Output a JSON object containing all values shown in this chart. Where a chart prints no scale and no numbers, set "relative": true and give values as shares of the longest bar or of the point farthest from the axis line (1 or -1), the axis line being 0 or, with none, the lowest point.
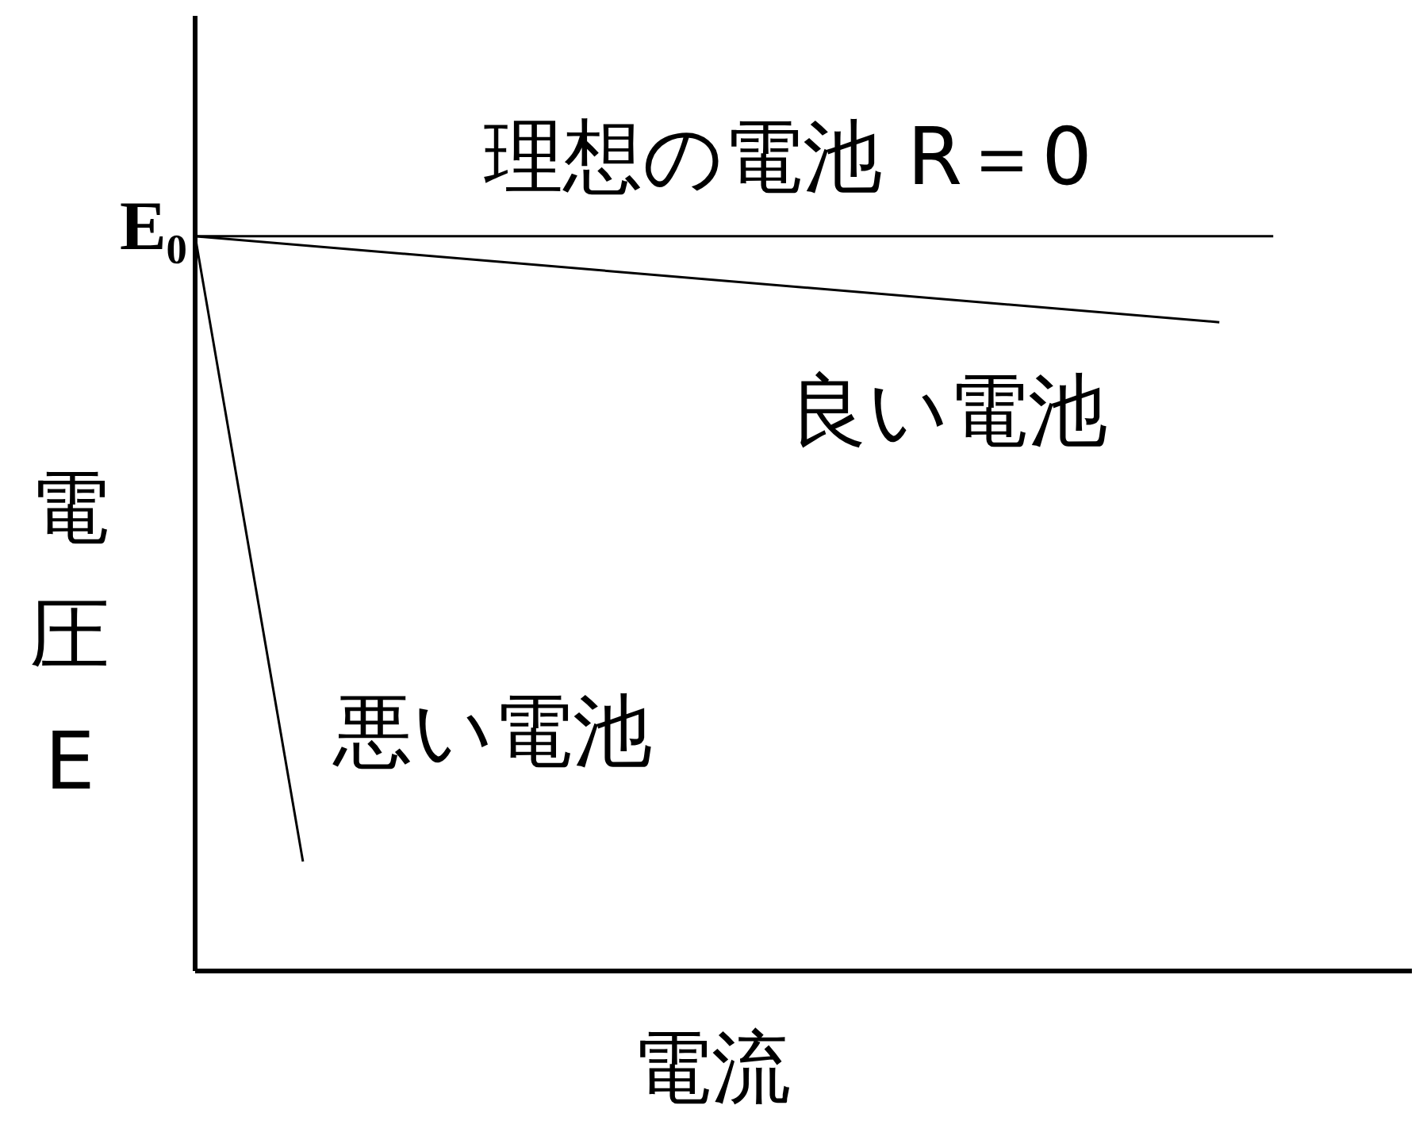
{
  "chart_data": {
    "type": "line",
    "relative": true,
    "xlabel": "電流",
    "ylabel": "電圧 E",
    "marker": "none",
    "line_style": "solid",
    "annotations": [
      "E₀"
    ],
    "categories": [
      null,
      null,
      null,
      null,
      null,
      null,
      null,
      null,
      null,
      null,
      null,
      null,
      null,
      null,
      null,
      null,
      null,
      null,
      null,
      null,
      null,
      null,
      null
    ],
    "series": [
      {
        "name": "理想の電池 R＝0",
        "color": "#000000",
        "values": [
          1,
          null,
          null,
          null,
          null,
          null,
          null,
          null,
          null,
          null,
          null,
          null,
          null,
          null,
          null,
          null,
          null,
          null,
          null,
          null,
          1,
          null,
          null
        ]
      },
      {
        "name": "良い電池",
        "color": "#000000",
        "values": [
          1,
          null,
          null,
          null,
          null,
          null,
          null,
          null,
          null,
          null,
          null,
          null,
          null,
          null,
          null,
          null,
          null,
          null,
          null,
          0.883,
          null,
          null,
          null
        ]
      },
      {
        "name": "悪い電池",
        "color": "#000000",
        "values": [
          1,
          null,
          0.149,
          null,
          null,
          null,
          null,
          null,
          null,
          null,
          null,
          null,
          null,
          null,
          null,
          null,
          null,
          null,
          null,
          null,
          null,
          null,
          null
        ]
      }
    ]
  }
}
